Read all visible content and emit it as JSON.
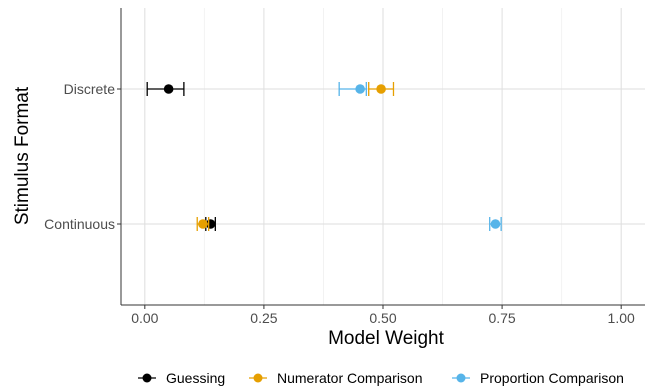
{
  "chart_data": {
    "type": "scatter",
    "title": "",
    "xlabel": "Model Weight",
    "ylabel": "Stimulus Format",
    "xlim": [
      -0.05,
      1.05
    ],
    "x_ticks": [
      0.0,
      0.25,
      0.5,
      0.75,
      1.0
    ],
    "x_tick_labels": [
      "0.00",
      "0.25",
      "0.50",
      "0.75",
      "1.00"
    ],
    "categories": [
      "Continuous",
      "Discrete"
    ],
    "grid": true,
    "legend_position": "bottom",
    "series": [
      {
        "name": "Guessing",
        "color": "#000000",
        "points": [
          {
            "category": "Discrete",
            "value": 0.05,
            "lower": 0.005,
            "upper": 0.082
          },
          {
            "category": "Continuous",
            "value": 0.138,
            "lower": 0.128,
            "upper": 0.148
          }
        ]
      },
      {
        "name": "Numerator Comparison",
        "color": "#E69F00",
        "points": [
          {
            "category": "Discrete",
            "value": 0.496,
            "lower": 0.47,
            "upper": 0.522
          },
          {
            "category": "Continuous",
            "value": 0.122,
            "lower": 0.11,
            "upper": 0.134
          }
        ]
      },
      {
        "name": "Proportion Comparison",
        "color": "#56B4E9",
        "points": [
          {
            "category": "Discrete",
            "value": 0.452,
            "lower": 0.408,
            "upper": 0.465
          },
          {
            "category": "Continuous",
            "value": 0.736,
            "lower": 0.724,
            "upper": 0.748
          }
        ]
      }
    ]
  }
}
